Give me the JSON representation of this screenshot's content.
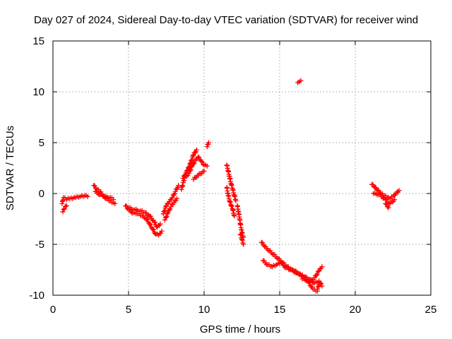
{
  "chart_data": {
    "type": "scatter",
    "title": "Day 027 of 2024, Sidereal Day-to-day VTEC variation (SDTVAR) for receiver wind",
    "xlabel": "GPS time / hours",
    "ylabel": "SDTVAR / TECUs",
    "xlim": [
      0,
      25
    ],
    "ylim": [
      -10,
      15
    ],
    "xticks": [
      "0",
      "5",
      "10",
      "15",
      "20",
      "25"
    ],
    "yticks": [
      "-10",
      "-5",
      "0",
      "5",
      "10",
      "15"
    ],
    "grid": true,
    "marker": "+",
    "color": "#ff0000",
    "series": [
      {
        "name": "SDTVAR",
        "segments": [
          {
            "x": [
              0.6,
              0.7,
              0.9,
              1.1,
              1.3,
              1.5,
              1.8,
              2.1,
              2.3
            ],
            "y": [
              -1.0,
              -0.4,
              -0.6,
              -0.5,
              -0.5,
              -0.4,
              -0.3,
              -0.2,
              -0.3
            ]
          },
          {
            "x": [
              0.65,
              0.75,
              0.9
            ],
            "y": [
              -1.8,
              -1.5,
              -1.2
            ]
          },
          {
            "x": [
              2.7,
              2.9,
              3.1,
              3.3,
              3.5,
              3.7,
              3.9,
              4.1
            ],
            "y": [
              0.8,
              0.4,
              0.2,
              -0.2,
              -0.5,
              -0.7,
              -0.9,
              -1.0
            ]
          },
          {
            "x": [
              2.8,
              3.1,
              3.4,
              3.8,
              4.0
            ],
            "y": [
              0.2,
              -0.1,
              -0.3,
              -0.4,
              -0.6
            ]
          },
          {
            "x": [
              4.8,
              5.0,
              5.3,
              5.6,
              5.9,
              6.2,
              6.4,
              6.6,
              6.8,
              7.0,
              7.2
            ],
            "y": [
              -1.2,
              -1.6,
              -1.9,
              -2.0,
              -2.2,
              -2.5,
              -3.0,
              -3.5,
              -4.0,
              -4.1,
              -3.7
            ]
          },
          {
            "x": [
              5.0,
              5.4,
              5.8,
              6.1,
              6.4,
              6.7,
              6.9,
              7.1
            ],
            "y": [
              -1.4,
              -1.6,
              -1.7,
              -1.9,
              -2.2,
              -2.8,
              -3.3,
              -3.0
            ]
          },
          {
            "x": [
              7.3,
              7.5,
              7.7,
              7.9,
              8.1,
              8.3
            ],
            "y": [
              -2.0,
              -1.2,
              -0.8,
              -0.4,
              0.2,
              0.8
            ]
          },
          {
            "x": [
              7.4,
              7.6,
              7.8,
              8.0,
              8.2
            ],
            "y": [
              -2.6,
              -1.9,
              -1.3,
              -0.9,
              -0.5
            ]
          },
          {
            "x": [
              8.5,
              8.7,
              9.0,
              9.2,
              9.4,
              9.6,
              9.8,
              10.0,
              10.2
            ],
            "y": [
              0.4,
              1.5,
              2.0,
              2.7,
              3.2,
              3.6,
              3.2,
              2.8,
              2.7
            ]
          },
          {
            "x": [
              8.6,
              8.9,
              9.1,
              9.3,
              9.5
            ],
            "y": [
              1.5,
              2.3,
              3.0,
              3.8,
              4.3
            ]
          },
          {
            "x": [
              9.3,
              9.6,
              10.0
            ],
            "y": [
              1.4,
              1.8,
              2.2
            ]
          },
          {
            "x": [
              10.2,
              10.3
            ],
            "y": [
              4.6,
              5.0
            ]
          },
          {
            "x": [
              11.5,
              11.6,
              11.7,
              11.8,
              11.9,
              12.0,
              12.1
            ],
            "y": [
              2.8,
              2.2,
              1.5,
              0.9,
              0.4,
              -0.2,
              -0.7
            ]
          },
          {
            "x": [
              11.5,
              11.6,
              11.7,
              11.8,
              11.9,
              12.0
            ],
            "y": [
              0.6,
              -0.2,
              -0.8,
              -1.2,
              -1.6,
              -2.2
            ]
          },
          {
            "x": [
              12.2,
              12.3,
              12.4,
              12.5,
              12.6
            ],
            "y": [
              -1.2,
              -2.0,
              -3.0,
              -3.8,
              -4.3
            ]
          },
          {
            "x": [
              12.4,
              12.5,
              12.6
            ],
            "y": [
              -4.0,
              -4.5,
              -5.0
            ]
          },
          {
            "x": [
              13.8,
              14.0,
              14.3,
              14.6,
              14.9,
              15.2,
              15.5,
              15.8,
              16.1,
              16.4,
              16.7,
              17.0,
              17.3,
              17.6
            ],
            "y": [
              -4.8,
              -5.2,
              -5.6,
              -6.0,
              -6.4,
              -6.8,
              -7.2,
              -7.5,
              -7.8,
              -8.0,
              -8.2,
              -8.5,
              -8.8,
              -8.6
            ]
          },
          {
            "x": [
              13.9,
              14.2,
              14.5,
              14.8,
              15.1,
              15.4,
              15.7,
              16.0,
              16.3,
              16.6,
              16.9,
              17.2,
              17.5
            ],
            "y": [
              -6.6,
              -7.0,
              -7.2,
              -7.0,
              -6.8,
              -7.3,
              -7.5,
              -7.6,
              -7.9,
              -8.2,
              -8.7,
              -9.4,
              -9.6
            ]
          },
          {
            "x": [
              16.5,
              16.9,
              17.3,
              17.6,
              17.8
            ],
            "y": [
              -8.4,
              -8.6,
              -8.3,
              -7.6,
              -7.2
            ]
          },
          {
            "x": [
              17.5,
              17.6,
              17.7,
              17.8
            ],
            "y": [
              -9.4,
              -9.0,
              -8.8,
              -9.1
            ]
          },
          {
            "x": [
              16.2,
              16.3,
              16.4
            ],
            "y": [
              10.9,
              11.0,
              11.1
            ]
          },
          {
            "x": [
              21.1,
              21.3,
              21.5,
              21.7,
              21.9,
              22.1,
              22.3,
              22.5,
              22.7,
              22.9
            ],
            "y": [
              0.9,
              0.6,
              0.3,
              0.0,
              -0.2,
              -0.4,
              -0.5,
              -0.3,
              0.0,
              0.3
            ]
          },
          {
            "x": [
              21.2,
              21.6,
              22.0,
              22.3,
              22.6
            ],
            "y": [
              0.0,
              -0.1,
              -0.6,
              -1.0,
              -0.6
            ]
          },
          {
            "x": [
              22.0,
              22.2
            ],
            "y": [
              -1.0,
              -1.4
            ]
          }
        ]
      }
    ]
  }
}
